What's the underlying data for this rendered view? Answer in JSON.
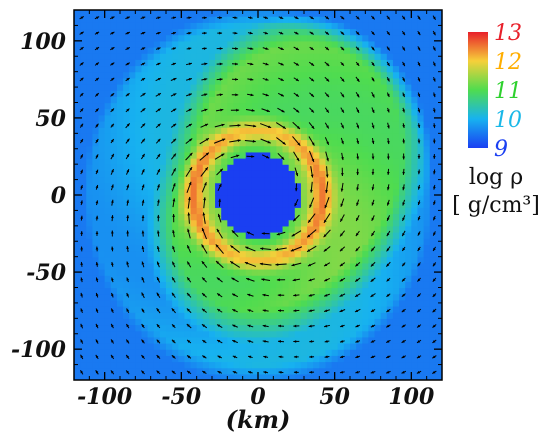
{
  "chart_data": {
    "type": "heatmap",
    "title": "",
    "xlabel": "(km)",
    "ylabel": "",
    "xlim": [
      -120,
      120
    ],
    "ylim": [
      -120,
      120
    ],
    "x_ticks": [
      -100,
      -50,
      0,
      50,
      100
    ],
    "y_ticks": [
      100,
      50,
      0,
      -50,
      -100
    ],
    "x_tick_labels": [
      "-100",
      "-50",
      "0",
      "50",
      "100"
    ],
    "y_tick_labels": [
      "100",
      "50",
      "0",
      "-50",
      "-100"
    ],
    "colorbar": {
      "title_line1": "log ρ",
      "title_line2": "[ g/cm³]",
      "range": [
        9,
        13
      ],
      "ticks": [
        13,
        12,
        11,
        10,
        9
      ],
      "tick_labels": [
        "13",
        "12",
        "11",
        "10",
        "9"
      ],
      "tick_colors": [
        "#e8202a",
        "#ffae00",
        "#2ed12e",
        "#1ab8e8",
        "#1a3ff2"
      ],
      "stops": [
        {
          "value": 9,
          "color": "#1a3ff2"
        },
        {
          "value": 10,
          "color": "#17b2f0"
        },
        {
          "value": 11,
          "color": "#4fdc4f"
        },
        {
          "value": 12,
          "color": "#f6d03a"
        },
        {
          "value": 13,
          "color": "#e8202a"
        }
      ]
    },
    "field": {
      "core_radius": 27,
      "core_log_rho": 9.0,
      "ring_radius": 42,
      "ring_log_rho": 12.3,
      "disk_log_rho": 11.1,
      "outer_log_rho": 10.0
    },
    "vector_field": "velocity",
    "grid": false
  }
}
